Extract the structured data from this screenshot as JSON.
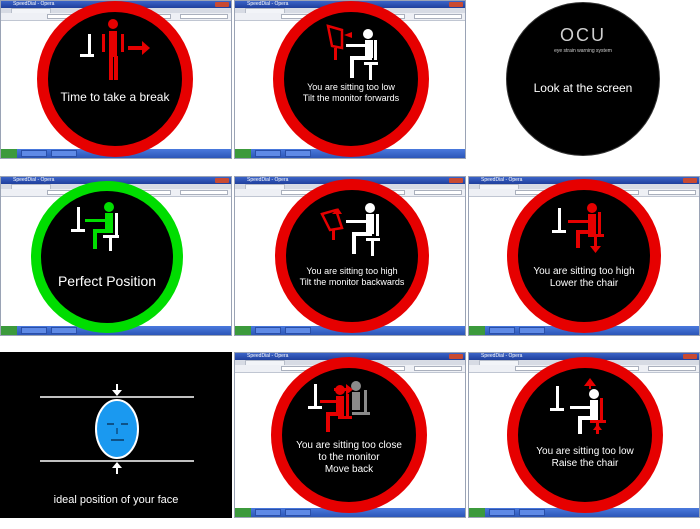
{
  "window": {
    "title": "SpeedDial - Opera"
  },
  "colors": {
    "red": "#e60000",
    "green": "#00dd00",
    "black": "#000000",
    "face_blue": "#1a99f0"
  },
  "panels": [
    {
      "id": "break",
      "caption": [
        "Time to take a break"
      ]
    },
    {
      "id": "too_low_tilt",
      "caption": [
        "You are sitting too low",
        "Tilt the monitor forwards"
      ]
    },
    {
      "id": "look",
      "logo": "OCU",
      "logo_sub": "eye strain warning system",
      "caption": [
        "Look at the screen"
      ]
    },
    {
      "id": "perfect",
      "caption": [
        "Perfect Position"
      ]
    },
    {
      "id": "too_high_tilt",
      "caption": [
        "You are sitting too high",
        "Tilt the monitor backwards"
      ]
    },
    {
      "id": "too_high_chair",
      "caption": [
        "You are sitting too high",
        "Lower the chair"
      ]
    },
    {
      "id": "face",
      "caption": [
        "ideal position of your face"
      ]
    },
    {
      "id": "too_close",
      "caption": [
        "You are sitting too close",
        "to the monitor",
        "Move back"
      ]
    },
    {
      "id": "too_low_chair",
      "caption": [
        "You are sitting too low",
        "Raise the chair"
      ]
    }
  ]
}
